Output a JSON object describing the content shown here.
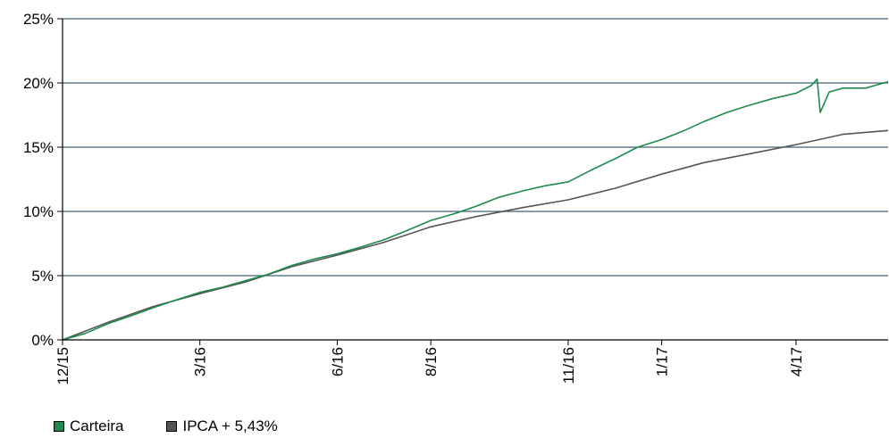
{
  "chart_data": {
    "type": "line",
    "title": "",
    "xlabel": "",
    "ylabel": "",
    "ylim": [
      0,
      25
    ],
    "y_ticks": [
      0,
      5,
      10,
      15,
      20,
      25
    ],
    "y_tick_labels": [
      "0%",
      "5%",
      "10%",
      "15%",
      "20%",
      "25%"
    ],
    "x_ticks": [
      {
        "date": "2015-12-31",
        "label": "12/15"
      },
      {
        "date": "2016-03-31",
        "label": "3/16"
      },
      {
        "date": "2016-06-30",
        "label": "6/16"
      },
      {
        "date": "2016-08-31",
        "label": "8/16"
      },
      {
        "date": "2016-11-30",
        "label": "11/16"
      },
      {
        "date": "2017-01-31",
        "label": "1/17"
      },
      {
        "date": "2017-04-30",
        "label": "4/17"
      }
    ],
    "xlim": [
      "2015-12-31",
      "2017-06-30"
    ],
    "grid": "horizontal",
    "legend_position": "bottom-left",
    "series": [
      {
        "name": "Carteira",
        "color": "#1e8b4c",
        "points": [
          [
            "2015-12-31",
            0.0
          ],
          [
            "2016-01-15",
            0.5
          ],
          [
            "2016-01-31",
            1.3
          ],
          [
            "2016-02-15",
            1.9
          ],
          [
            "2016-02-29",
            2.5
          ],
          [
            "2016-03-15",
            3.1
          ],
          [
            "2016-03-31",
            3.7
          ],
          [
            "2016-04-15",
            4.1
          ],
          [
            "2016-04-30",
            4.6
          ],
          [
            "2016-05-15",
            5.1
          ],
          [
            "2016-05-31",
            5.8
          ],
          [
            "2016-06-15",
            6.3
          ],
          [
            "2016-06-30",
            6.7
          ],
          [
            "2016-07-15",
            7.2
          ],
          [
            "2016-07-31",
            7.8
          ],
          [
            "2016-08-15",
            8.5
          ],
          [
            "2016-08-31",
            9.3
          ],
          [
            "2016-09-15",
            9.8
          ],
          [
            "2016-09-30",
            10.4
          ],
          [
            "2016-10-15",
            11.1
          ],
          [
            "2016-10-31",
            11.6
          ],
          [
            "2016-11-15",
            12.0
          ],
          [
            "2016-11-30",
            12.3
          ],
          [
            "2016-12-15",
            13.2
          ],
          [
            "2016-12-31",
            14.1
          ],
          [
            "2017-01-15",
            15.0
          ],
          [
            "2017-01-31",
            15.6
          ],
          [
            "2017-02-15",
            16.3
          ],
          [
            "2017-02-28",
            17.0
          ],
          [
            "2017-03-15",
            17.7
          ],
          [
            "2017-03-31",
            18.3
          ],
          [
            "2017-04-15",
            18.8
          ],
          [
            "2017-04-30",
            19.2
          ],
          [
            "2017-05-10",
            19.8
          ],
          [
            "2017-05-14",
            20.3
          ],
          [
            "2017-05-16",
            17.7
          ],
          [
            "2017-05-22",
            19.3
          ],
          [
            "2017-05-31",
            19.6
          ],
          [
            "2017-06-15",
            19.6
          ],
          [
            "2017-06-30",
            20.1
          ]
        ]
      },
      {
        "name": "IPCA + 5,43%",
        "color": "#555555",
        "points": [
          [
            "2015-12-31",
            0.0
          ],
          [
            "2016-01-31",
            1.4
          ],
          [
            "2016-02-29",
            2.6
          ],
          [
            "2016-03-31",
            3.6
          ],
          [
            "2016-04-30",
            4.5
          ],
          [
            "2016-05-31",
            5.7
          ],
          [
            "2016-06-30",
            6.6
          ],
          [
            "2016-07-31",
            7.6
          ],
          [
            "2016-08-31",
            8.8
          ],
          [
            "2016-09-30",
            9.6
          ],
          [
            "2016-10-31",
            10.3
          ],
          [
            "2016-11-30",
            10.9
          ],
          [
            "2016-12-31",
            11.8
          ],
          [
            "2017-01-31",
            12.9
          ],
          [
            "2017-02-28",
            13.8
          ],
          [
            "2017-03-31",
            14.5
          ],
          [
            "2017-04-30",
            15.2
          ],
          [
            "2017-05-31",
            16.0
          ],
          [
            "2017-06-30",
            16.3
          ]
        ]
      }
    ]
  }
}
